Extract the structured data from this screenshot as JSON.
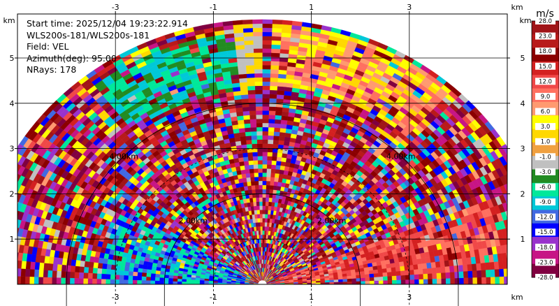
{
  "chart_data": {
    "type": "heatmap",
    "subtype": "radar-rhi-sector",
    "info": {
      "start_time": "Start time: 2025/12/04 19:23:22.914",
      "instrument": "WLS200s-181/WLS200s-181",
      "field": "Field: VEL",
      "azimuth": "Azimuth(deg): 95.00",
      "nrays": "NRays: 178"
    },
    "x_unit": "km",
    "y_unit": "km",
    "x_ticks": [
      "-3",
      "-1",
      "1",
      "3"
    ],
    "y_ticks": [
      "1",
      "2",
      "3",
      "4",
      "5"
    ],
    "x_range": [
      -5.0,
      5.0
    ],
    "y_range": [
      0.0,
      5.0
    ],
    "range_rings": [
      "2.00km",
      "4.00km"
    ],
    "colorbar": {
      "unit": "m/s",
      "labels": [
        "28.0",
        "23.0",
        "18.0",
        "15.0",
        "12.0",
        "9.0",
        "6.0",
        "3.0",
        "1.0",
        "-1.0",
        "-3.0",
        "-6.0",
        "-9.0",
        "-12.0",
        "-15.0",
        "-18.0",
        "-23.0",
        "-28.0"
      ],
      "colors": [
        "#a01418",
        "#b81a1a",
        "#8b0000",
        "#d42020",
        "#f04848",
        "#ff7060",
        "#ff9a70",
        "#ffff00",
        "#ffd800",
        "#f0a040",
        "#c0c0c0",
        "#228b22",
        "#00e89a",
        "#00c8d8",
        "#4169e1",
        "#0000ff",
        "#9932cc",
        "#c71585",
        "#800040"
      ]
    },
    "regions": [
      {
        "name": "upper-right-positive",
        "az": [
          48,
          88
        ],
        "range_km": [
          4.35,
          5.75
        ],
        "values": [
          1.0,
          3.0,
          6.0,
          9.0
        ]
      },
      {
        "name": "top-grey-near-zero",
        "az": [
          90,
          96
        ],
        "range_km": [
          4.35,
          5.8
        ],
        "values": [
          -1.0,
          1.0
        ]
      },
      {
        "name": "upper-left-negative",
        "az": [
          96,
          128
        ],
        "range_km": [
          4.3,
          5.6
        ],
        "values": [
          -3.0,
          -6.0,
          -9.0
        ]
      },
      {
        "name": "lower-left-negative-band",
        "az": [
          150,
          180
        ],
        "range_km": [
          0.3,
          3.3
        ],
        "values": [
          -6.0,
          -9.0,
          -12.0,
          -15.0
        ]
      },
      {
        "name": "lower-right-positive-band",
        "az": [
          4,
          22
        ],
        "range_km": [
          0.3,
          5.1
        ],
        "values": [
          9.0,
          12.0,
          15.0
        ]
      }
    ],
    "grid": true
  }
}
